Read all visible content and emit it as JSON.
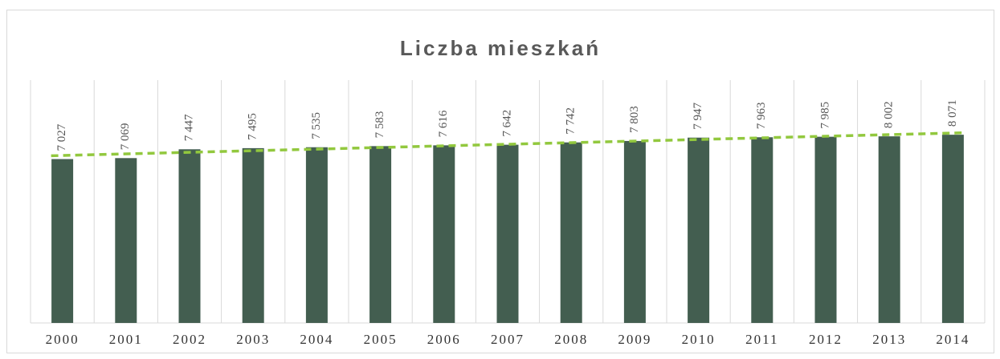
{
  "chart_data": {
    "type": "bar",
    "title": "Liczba mieszkań",
    "categories": [
      "2000",
      "2001",
      "2002",
      "2003",
      "2004",
      "2005",
      "2006",
      "2007",
      "2008",
      "2009",
      "2010",
      "2011",
      "2012",
      "2013",
      "2014"
    ],
    "values": [
      7027,
      7069,
      7447,
      7495,
      7535,
      7583,
      7616,
      7642,
      7742,
      7803,
      7947,
      7963,
      7985,
      8002,
      8071
    ],
    "value_labels": [
      "7 027",
      "7 069",
      "7 447",
      "7 495",
      "7 535",
      "7 583",
      "7 616",
      "7 642",
      "7 742",
      "7 803",
      "7 947",
      "7 963",
      "7 985",
      "8 002",
      "8 071"
    ],
    "color": "#435e50",
    "ylim": [
      0,
      10000
    ],
    "grid": true,
    "trendline": {
      "type": "linear",
      "color": "#92c83e"
    }
  }
}
